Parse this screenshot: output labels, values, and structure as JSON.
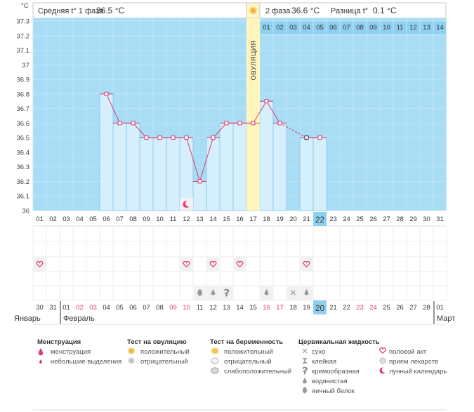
{
  "chart_data": {
    "type": "line",
    "title": "",
    "ylabel": "°C",
    "ylim": [
      36.0,
      37.3
    ],
    "y_ticks": [
      "36",
      "36.1",
      "36.2",
      "36.3",
      "36.4",
      "36.5",
      "36.6",
      "36.7",
      "36.8",
      "36.9",
      "37",
      "37.1",
      "37.2",
      "37.3"
    ],
    "cycle_days": [
      "01",
      "02",
      "03",
      "04",
      "05",
      "06",
      "07",
      "08",
      "09",
      "10",
      "11",
      "12",
      "13",
      "14",
      "15",
      "16",
      "17",
      "18",
      "19",
      "20",
      "21",
      "22",
      "23",
      "24",
      "25",
      "26",
      "27",
      "28",
      "29",
      "30",
      "31"
    ],
    "values": [
      null,
      null,
      null,
      null,
      null,
      36.8,
      36.6,
      36.6,
      36.5,
      36.5,
      36.5,
      36.5,
      36.2,
      36.5,
      36.6,
      36.6,
      36.6,
      36.75,
      36.6,
      null,
      36.5,
      36.5,
      null,
      null,
      null,
      null,
      null,
      null,
      null,
      null,
      null
    ],
    "current_day": "22",
    "ovulation_day": "17",
    "ovulation_label": "ОВУЛЯЦИЯ",
    "phase2_days": [
      "01",
      "02",
      "03",
      "04",
      "05",
      "06",
      "07",
      "08",
      "09",
      "10",
      "11",
      "12",
      "13",
      "14"
    ],
    "dates": [
      {
        "d": "30",
        "red": false
      },
      {
        "d": "31",
        "red": false
      },
      {
        "d": "01",
        "red": false
      },
      {
        "d": "02",
        "red": true
      },
      {
        "d": "03",
        "red": true
      },
      {
        "d": "04",
        "red": false
      },
      {
        "d": "05",
        "red": false
      },
      {
        "d": "06",
        "red": false
      },
      {
        "d": "07",
        "red": false
      },
      {
        "d": "08",
        "red": false
      },
      {
        "d": "09",
        "red": true
      },
      {
        "d": "10",
        "red": true
      },
      {
        "d": "11",
        "red": false
      },
      {
        "d": "12",
        "red": false
      },
      {
        "d": "13",
        "red": false
      },
      {
        "d": "14",
        "red": false
      },
      {
        "d": "15",
        "red": false
      },
      {
        "d": "16",
        "red": true
      },
      {
        "d": "17",
        "red": true
      },
      {
        "d": "18",
        "red": false
      },
      {
        "d": "19",
        "red": false
      },
      {
        "d": "20",
        "red": false
      },
      {
        "d": "21",
        "red": false
      },
      {
        "d": "22",
        "red": false
      },
      {
        "d": "23",
        "red": true
      },
      {
        "d": "24",
        "red": true
      },
      {
        "d": "25",
        "red": false
      },
      {
        "d": "26",
        "red": false
      },
      {
        "d": "27",
        "red": false
      },
      {
        "d": "28",
        "red": false
      },
      {
        "d": "01",
        "red": false
      }
    ],
    "today_date": "20",
    "markers": {
      "sex_days": [
        "01",
        "12",
        "14",
        "16",
        "21"
      ],
      "moon_day": "12",
      "fluid": [
        {
          "day": "13",
          "type": "egg-white"
        },
        {
          "day": "14",
          "type": "watery"
        },
        {
          "day": "15",
          "type": "creamy"
        },
        {
          "day": "18",
          "type": "watery"
        },
        {
          "day": "20",
          "type": "dry"
        },
        {
          "day": "21",
          "type": "watery"
        }
      ]
    }
  },
  "header": {
    "phase1_label": "Средняя t° 1 фаза",
    "phase1_value": "36.5 °C",
    "phase2_label": "2 фаза",
    "phase2_value": "36.6 °C",
    "diff_label": "Разница t°",
    "diff_value": "0.1 °C"
  },
  "months": {
    "prev": "Январь",
    "current": "Февраль",
    "next": "Март"
  },
  "legend": {
    "menstruation": {
      "title": "Менструация",
      "items": [
        "менструация",
        "небольшие выделения"
      ]
    },
    "ovulation_test": {
      "title": "Тест на овуляцию",
      "items": [
        "положительный",
        "отрицательный"
      ]
    },
    "pregnancy_test": {
      "title": "Тест на беременность",
      "items": [
        "положительный",
        "отрицательный",
        "слабоположительный"
      ]
    },
    "cervical_fluid": {
      "title": "Цервикальная жидкость",
      "items": [
        "сухо",
        "клейкая",
        "кремообразная",
        "водянистая",
        "яичный белок"
      ]
    },
    "other": {
      "items": [
        "половой акт",
        "прием лекарств",
        "лунный календарь"
      ]
    }
  }
}
